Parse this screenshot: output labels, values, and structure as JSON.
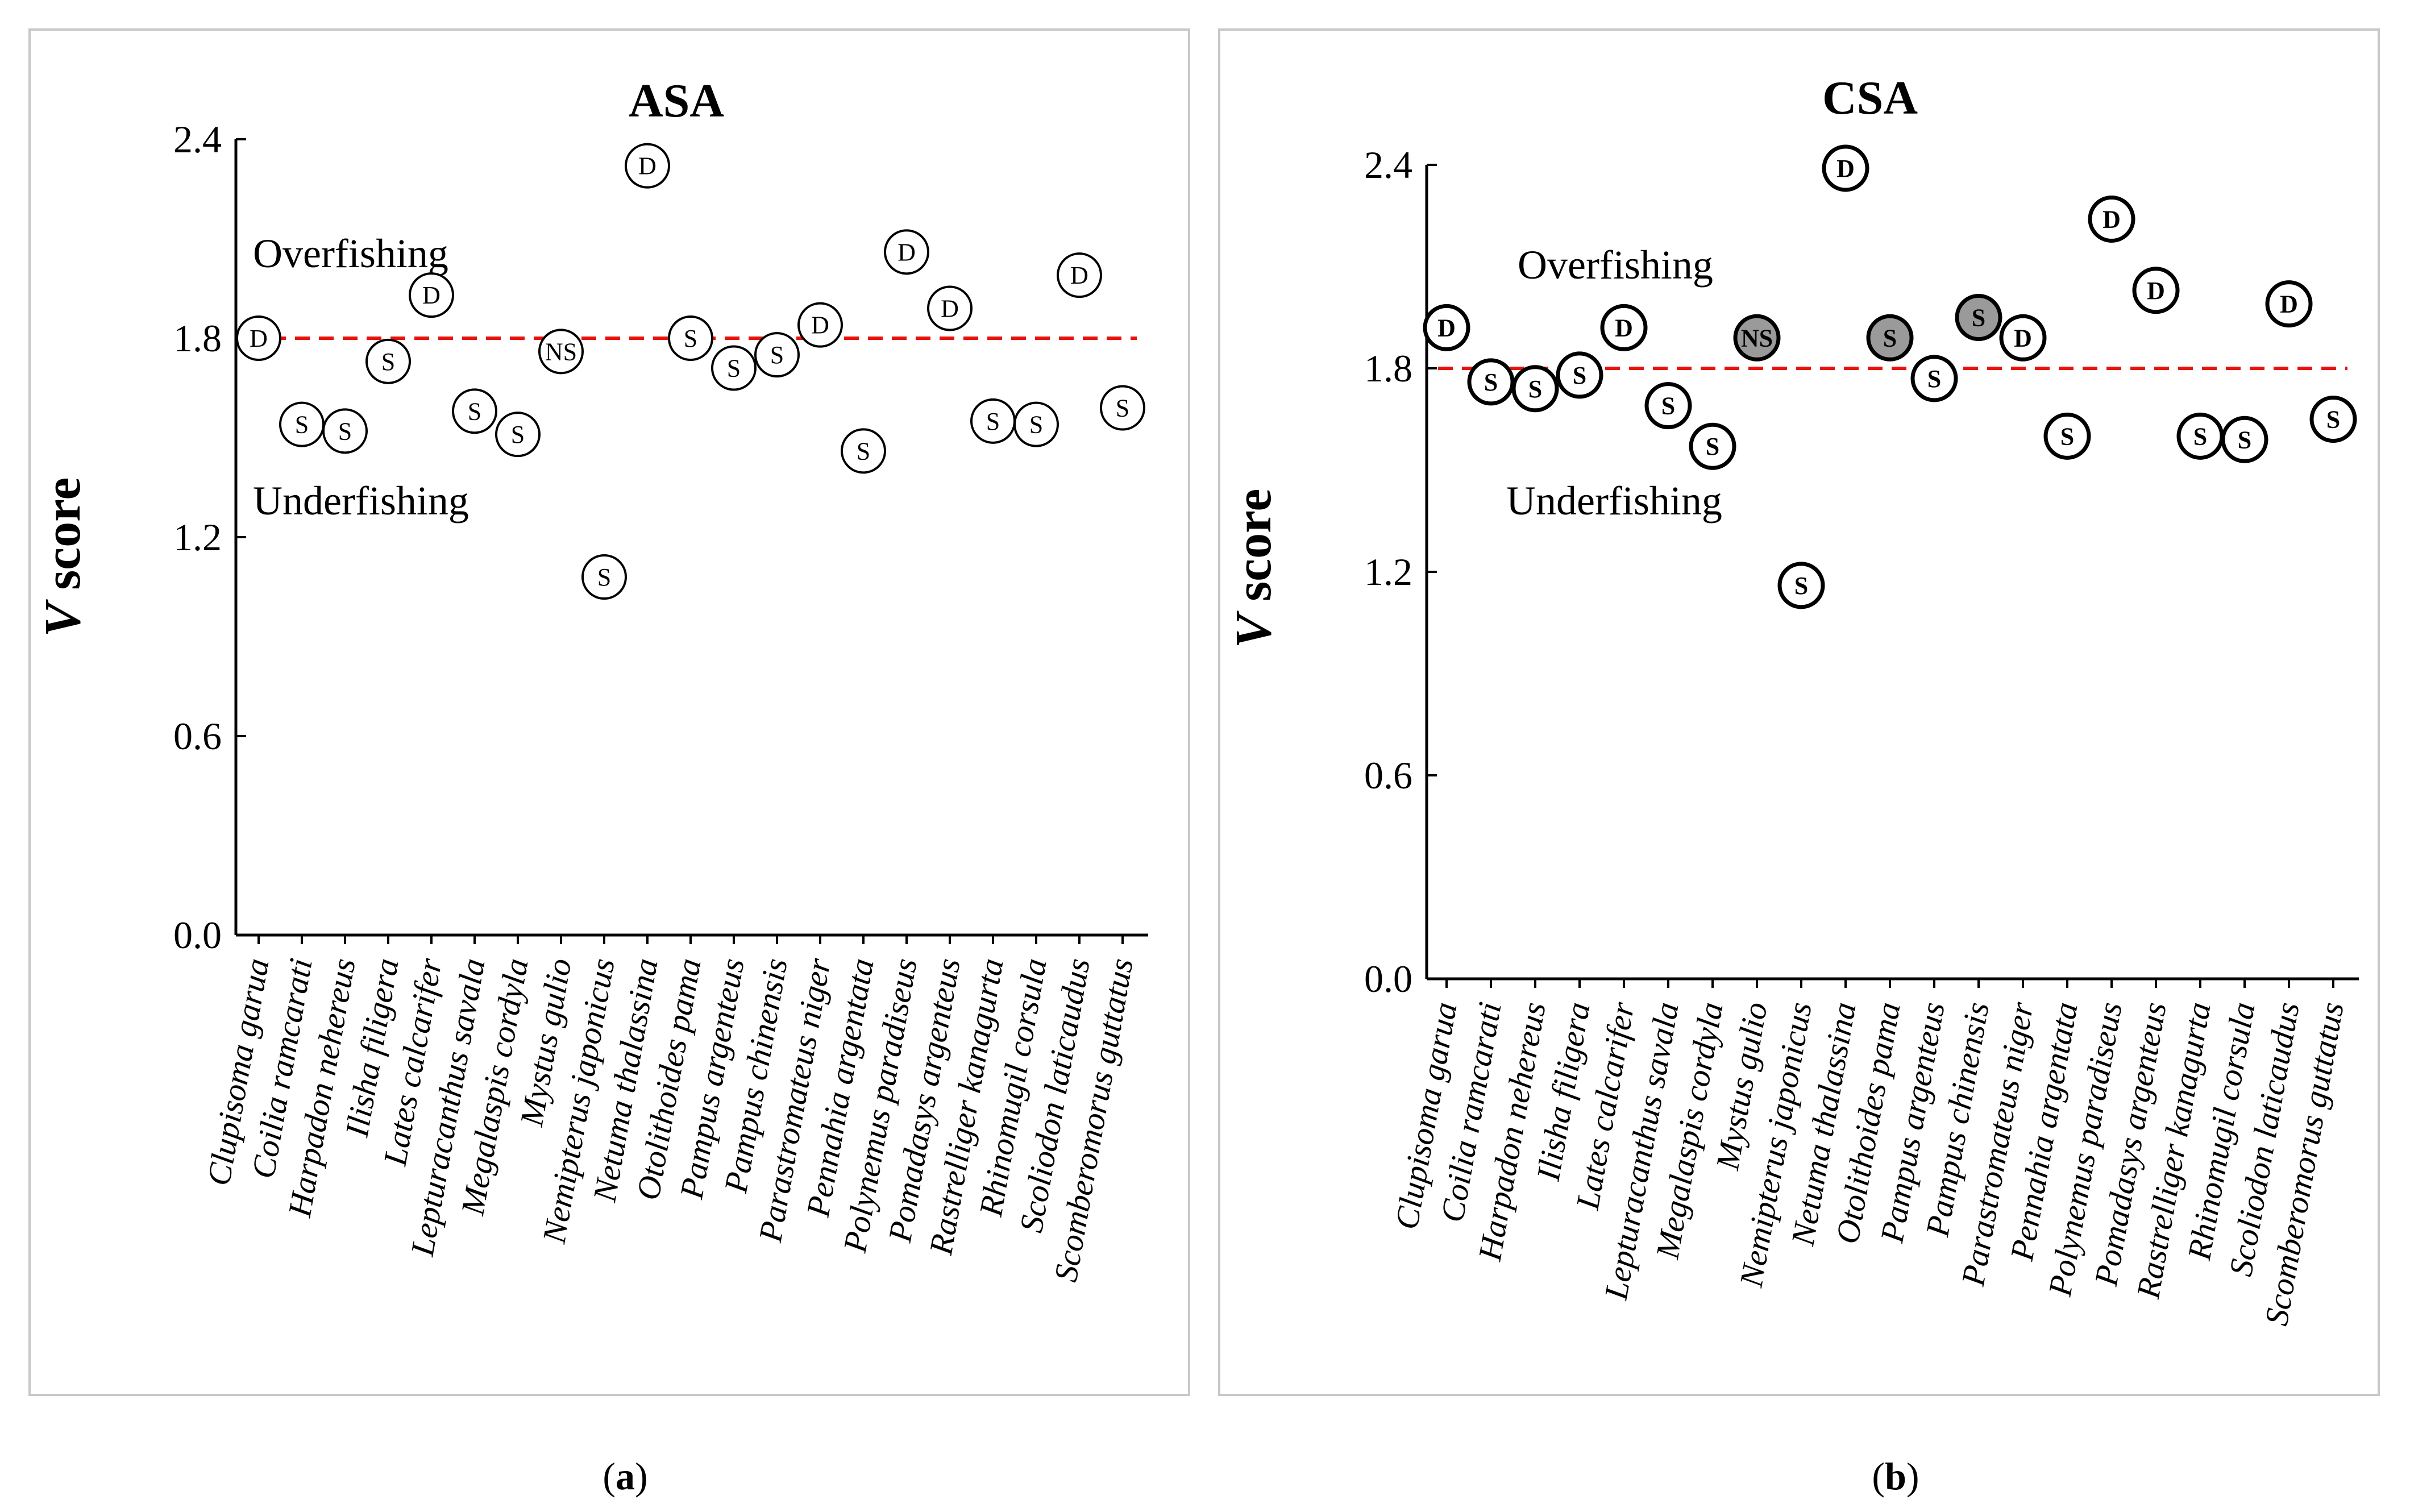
{
  "chart_data": [
    {
      "id": "asa",
      "type": "scatter",
      "title": "ASA",
      "ylabel_italic": "V",
      "ylabel_rest": " score",
      "ylim": [
        0,
        2.4
      ],
      "yticks": [
        "0.0",
        "0.6",
        "1.2",
        "1.8",
        "2.4"
      ],
      "ytick_values": [
        0,
        0.6,
        1.2,
        1.8,
        2.4
      ],
      "reference_line": 1.8,
      "regions": {
        "upper": "Overfishing",
        "lower": "Underfishing"
      },
      "caption_letter": "a",
      "categories": [
        "Clupisoma garua",
        "Coilia ramcarati",
        "Harpadon nehereus",
        "Ilisha filigera",
        "Lates calcarifer",
        "Lepturacanthus savala",
        "Megalaspis cordyla",
        "Mystus gulio",
        "Nemipterus japonicus",
        "Netuma thalassina",
        "Otolithoides pama",
        "Pampus argenteus",
        "Pampus chinensis",
        "Parastromateus niger",
        "Pennahia argentata",
        "Polynemus paradiseus",
        "Pomadasys argenteus",
        "Rastrelliger kanagurta",
        "Rhinomugil corsula",
        "Scoliodon laticaudus",
        "Scomberomorus guttatus"
      ],
      "values": [
        1.8,
        1.54,
        1.52,
        1.73,
        1.93,
        1.58,
        1.51,
        1.76,
        1.08,
        2.32,
        1.8,
        1.71,
        1.75,
        1.84,
        1.46,
        2.06,
        1.89,
        1.55,
        1.54,
        1.99,
        1.59
      ],
      "labels": [
        "D",
        "S",
        "S",
        "S",
        "D",
        "S",
        "S",
        "NS",
        "S",
        "D",
        "S",
        "S",
        "S",
        "D",
        "S",
        "D",
        "D",
        "S",
        "S",
        "D",
        "S"
      ],
      "filled": [
        false,
        false,
        false,
        false,
        false,
        false,
        false,
        false,
        false,
        false,
        false,
        false,
        false,
        false,
        false,
        false,
        false,
        false,
        false,
        false,
        false
      ]
    },
    {
      "id": "csa",
      "type": "scatter",
      "title": "CSA",
      "ylabel_italic": "V",
      "ylabel_rest": " score",
      "ylim": [
        0,
        2.4
      ],
      "yticks": [
        "0.0",
        "0.6",
        "1.2",
        "1.8",
        "2.4"
      ],
      "ytick_values": [
        0,
        0.6,
        1.2,
        1.8,
        2.4
      ],
      "reference_line": 1.8,
      "regions": {
        "upper": "Overfishing",
        "lower": "Underfishing"
      },
      "caption_letter": "b",
      "categories": [
        "Clupisoma garua",
        "Coilia ramcarati",
        "Harpadon nehereus",
        "Ilisha filigera",
        "Lates calcarifer",
        "Lepturacanthus savala",
        "Megalaspis cordyla",
        "Mystus gulio",
        "Nemipterus japonicus",
        "Netuma thalassina",
        "Otolithoides pama",
        "Pampus argenteus",
        "Pampus chinensis",
        "Parastromateus niger",
        "Pennahia argentata",
        "Polynemus paradiseus",
        "Pomadasys argenteus",
        "Rastrelliger kanagurta",
        "Rhinomugil corsula",
        "Scoliodon laticaudus",
        "Scomberomorus guttatus"
      ],
      "values": [
        1.92,
        1.76,
        1.74,
        1.78,
        1.92,
        1.69,
        1.57,
        1.89,
        1.16,
        2.39,
        1.89,
        1.77,
        1.95,
        1.89,
        1.6,
        2.24,
        2.03,
        1.6,
        1.59,
        1.99,
        1.65
      ],
      "labels": [
        "D",
        "S",
        "S",
        "S",
        "D",
        "S",
        "S",
        "NS",
        "S",
        "D",
        "S",
        "S",
        "S",
        "D",
        "S",
        "D",
        "D",
        "S",
        "S",
        "D",
        "S"
      ],
      "filled": [
        false,
        false,
        false,
        false,
        false,
        false,
        false,
        true,
        false,
        false,
        true,
        false,
        true,
        false,
        false,
        false,
        false,
        false,
        false,
        false,
        false
      ]
    }
  ],
  "colors": {
    "reference_line": "#e8140c",
    "marker_fill_highlight": "#9a9a9a",
    "marker_fill_default": "#ffffff",
    "frame": "#c8c8c8"
  }
}
